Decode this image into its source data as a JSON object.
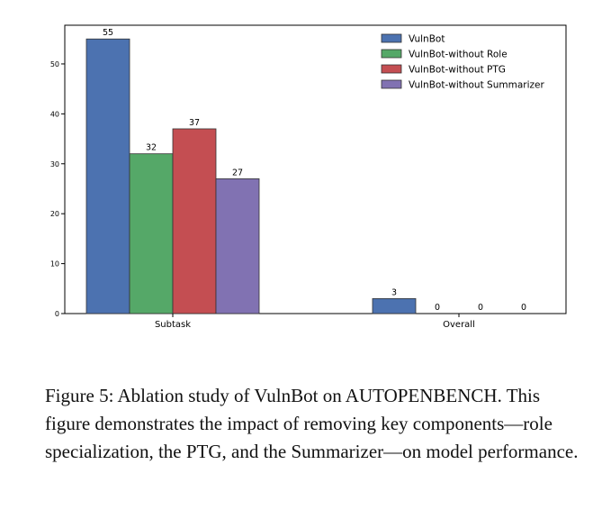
{
  "chart_data": {
    "type": "bar",
    "categories": [
      "Subtask",
      "Overall"
    ],
    "series": [
      {
        "name": "VulnBot",
        "values": [
          55,
          3
        ],
        "color": "#4c72b0"
      },
      {
        "name": "VulnBot-without Role",
        "values": [
          32,
          0
        ],
        "color": "#55a868"
      },
      {
        "name": "VulnBot-without PTG",
        "values": [
          37,
          0
        ],
        "color": "#c44e52"
      },
      {
        "name": "VulnBot-without Summarizer",
        "values": [
          27,
          0
        ],
        "color": "#8172b2"
      }
    ],
    "yticks": [
      0,
      10,
      20,
      30,
      40,
      50
    ],
    "ylim": [
      0,
      57.75
    ],
    "title": "",
    "xlabel": "",
    "ylabel": "",
    "legend_position": "top-right",
    "grid": false
  },
  "caption": {
    "label": "Figure 5:",
    "text": "Ablation study of VulnBot on AUTOPENBENCH. This figure demonstrates the impact of removing key components—role specialization, the PTG, and the Summarizer—on model performance."
  }
}
